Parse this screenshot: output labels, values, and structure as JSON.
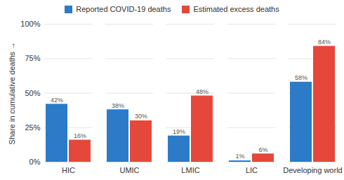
{
  "chart_data": {
    "type": "bar",
    "categories": [
      "HIC",
      "UMIC",
      "LMIC",
      "LIC",
      "Developing world"
    ],
    "series": [
      {
        "name": "Reported COVID-19 deaths",
        "color": "#2b7bc9",
        "values": [
          42,
          38,
          19,
          1,
          58
        ],
        "value_labels": [
          "42%",
          "38%",
          "19%",
          "1%",
          "58%"
        ]
      },
      {
        "name": "Estimated excess deaths",
        "color": "#e5483b",
        "values": [
          16,
          30,
          48,
          6,
          84
        ],
        "value_labels": [
          "16%",
          "30%",
          "48%",
          "6%",
          "84%"
        ]
      }
    ],
    "ylabel": "Share in cumulative deaths",
    "ylim": [
      0,
      100
    ],
    "yticks": [
      {
        "value": 0,
        "label": "0%"
      },
      {
        "value": 25,
        "label": "25%"
      },
      {
        "value": 50,
        "label": "50%"
      },
      {
        "value": 75,
        "label": "75%"
      },
      {
        "value": 100,
        "label": "100%"
      }
    ],
    "grid": true,
    "legend": "top",
    "data_labels": true
  }
}
